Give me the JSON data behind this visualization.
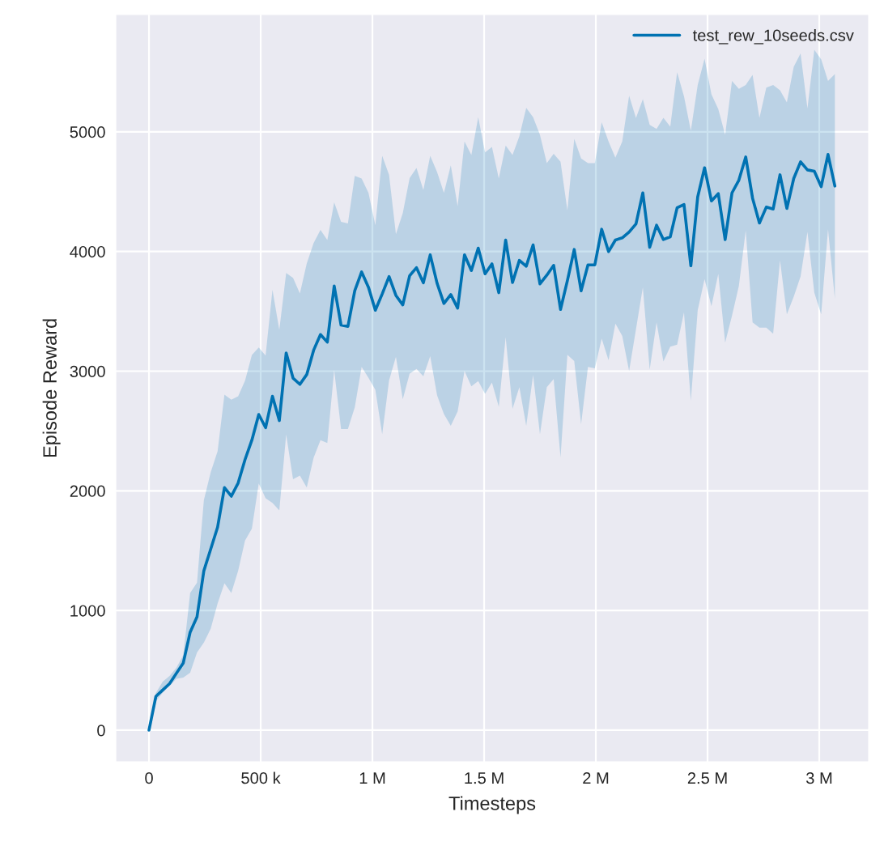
{
  "chart_data": {
    "type": "line",
    "xlabel": "Timesteps",
    "ylabel": "Episode Reward",
    "x": [
      0,
      30700,
      61400,
      92100,
      122800,
      153500,
      184200,
      214900,
      245600,
      276300,
      307000,
      337700,
      368400,
      399100,
      429800,
      460500,
      491200,
      521900,
      552600,
      583300,
      614000,
      644700,
      675400,
      706100,
      736800,
      767500,
      798200,
      828900,
      859600,
      890300,
      921000,
      951700,
      982400,
      1013100,
      1043800,
      1074500,
      1105200,
      1135900,
      1166600,
      1197300,
      1228000,
      1258700,
      1289400,
      1320100,
      1350800,
      1381500,
      1412200,
      1442900,
      1473600,
      1504300,
      1535000,
      1565700,
      1596400,
      1627100,
      1657800,
      1688500,
      1719200,
      1749900,
      1780600,
      1811300,
      1842000,
      1872700,
      1903400,
      1934100,
      1964800,
      1995500,
      2026200,
      2056900,
      2087600,
      2118300,
      2149000,
      2179700,
      2210400,
      2241100,
      2271800,
      2302500,
      2333200,
      2363900,
      2394600,
      2425300,
      2456000,
      2486700,
      2517400,
      2548100,
      2578800,
      2609500,
      2640200,
      2670900,
      2701600,
      2732300,
      2763000,
      2793700,
      2824400,
      2855100,
      2885800,
      2916500,
      2947200,
      2977900,
      3008600,
      3039300,
      3070000
    ],
    "series": [
      {
        "name": "test_rew_10seeds.csv",
        "color": "#0072b2",
        "values": [
          0,
          282,
          336,
          389,
          476,
          562,
          819,
          947,
          1332,
          1514,
          1696,
          2027,
          1955,
          2066,
          2261,
          2424,
          2638,
          2528,
          2790,
          2587,
          3152,
          2942,
          2890,
          2972,
          3175,
          3306,
          3243,
          3712,
          3385,
          3374,
          3672,
          3829,
          3701,
          3509,
          3645,
          3791,
          3633,
          3554,
          3798,
          3865,
          3739,
          3972,
          3735,
          3566,
          3640,
          3527,
          3972,
          3841,
          4028,
          3814,
          3897,
          3656,
          4096,
          3741,
          3926,
          3877,
          4055,
          3730,
          3802,
          3884,
          3516,
          3757,
          4017,
          3672,
          3888,
          3888,
          4186,
          3999,
          4096,
          4114,
          4163,
          4231,
          4490,
          4035,
          4220,
          4100,
          4123,
          4366,
          4393,
          3881,
          4456,
          4700,
          4423,
          4484,
          4100,
          4490,
          4596,
          4790,
          4445,
          4238,
          4371,
          4355,
          4641,
          4360,
          4610,
          4750,
          4682,
          4671,
          4542,
          4811,
          4547
        ],
        "upper": [
          0,
          311,
          406,
          453,
          522,
          627,
          1147,
          1233,
          1922,
          2156,
          2330,
          2804,
          2762,
          2790,
          2921,
          3135,
          3198,
          3131,
          3680,
          3345,
          3820,
          3780,
          3650,
          3900,
          4070,
          4180,
          4096,
          4411,
          4249,
          4235,
          4632,
          4610,
          4490,
          4220,
          4799,
          4641,
          4145,
          4321,
          4614,
          4698,
          4513,
          4799,
          4664,
          4490,
          4720,
          4378,
          4919,
          4806,
          5122,
          4829,
          4874,
          4610,
          4885,
          4806,
          4964,
          5201,
          5122,
          4975,
          4738,
          4817,
          4750,
          4344,
          4941,
          4777,
          4738,
          4738,
          5081,
          4919,
          4784,
          4919,
          5302,
          5115,
          5273,
          5059,
          5025,
          5117,
          5043,
          5498,
          5296,
          5009,
          5392,
          5611,
          5314,
          5190,
          4975,
          5426,
          5359,
          5392,
          5476,
          5115,
          5370,
          5392,
          5347,
          5246,
          5544,
          5656,
          5196,
          5686,
          5607,
          5426,
          5483
        ],
        "lower": [
          0,
          242,
          312,
          371,
          429,
          440,
          480,
          650,
          732,
          849,
          1059,
          1227,
          1147,
          1332,
          1584,
          1684,
          2062,
          1938,
          1899,
          1836,
          2470,
          2097,
          2127,
          2027,
          2277,
          2424,
          2400,
          3009,
          2517,
          2517,
          2698,
          3036,
          2945,
          2844,
          2472,
          2923,
          3121,
          2765,
          2979,
          3018,
          2957,
          3126,
          2799,
          2641,
          2544,
          2664,
          3002,
          2873,
          2918,
          2810,
          2905,
          2702,
          3284,
          2686,
          2867,
          2544,
          2968,
          2472,
          2867,
          2934,
          2280,
          3137,
          3085,
          2557,
          3036,
          3024,
          3273,
          3092,
          3397,
          3295,
          3002,
          3351,
          3701,
          3013,
          3408,
          3081,
          3205,
          3221,
          3491,
          2754,
          3509,
          3769,
          3543,
          3814,
          3239,
          3464,
          3712,
          4175,
          3408,
          3363,
          3363,
          3313,
          3926,
          3475,
          3622,
          3791,
          4163,
          3656,
          3475,
          4186,
          3604
        ]
      }
    ],
    "xlim": [
      -148600,
      3221000
    ],
    "ylim": [
      -264,
      5981
    ],
    "xticks": [
      {
        "value": 0,
        "label": "0"
      },
      {
        "value": 500000,
        "label": "500 k"
      },
      {
        "value": 1000000,
        "label": "1 M"
      },
      {
        "value": 1500000,
        "label": "1.5 M"
      },
      {
        "value": 2000000,
        "label": "2 M"
      },
      {
        "value": 2500000,
        "label": "2.5 M"
      },
      {
        "value": 3000000,
        "label": "3 M"
      }
    ],
    "yticks": [
      0,
      1000,
      2000,
      3000,
      4000,
      5000
    ],
    "grid": true,
    "legend": "top right",
    "marker": "none",
    "line_style": "solid"
  }
}
